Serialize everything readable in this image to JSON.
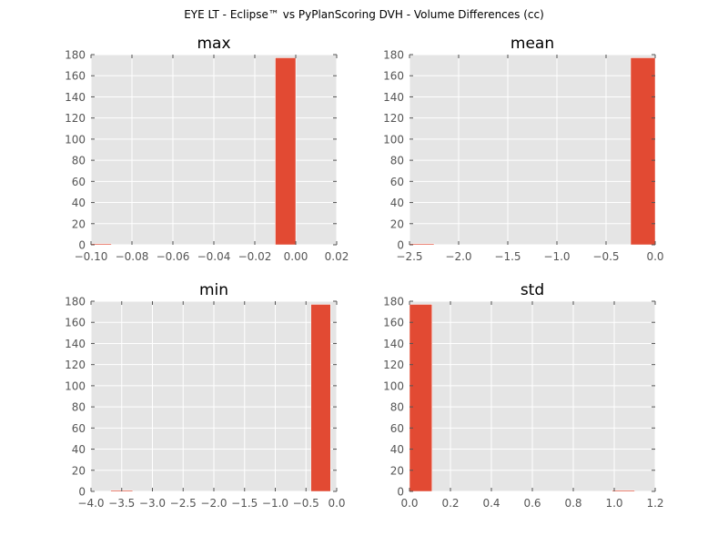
{
  "figure": {
    "suptitle": "EYE LT - Eclipse™ vs PyPlanScoring DVH - Volume Differences (cc)"
  },
  "chart_data": [
    {
      "type": "bar",
      "title": "max",
      "xlabel": "",
      "ylabel": "",
      "xlim": [
        -0.1,
        0.02
      ],
      "ylim": [
        0,
        180
      ],
      "xticks": [
        -0.1,
        -0.08,
        -0.06,
        -0.04,
        -0.02,
        0.0,
        0.02
      ],
      "xtick_labels": [
        "−0.10",
        "−0.08",
        "−0.06",
        "−0.04",
        "−0.02",
        "0.00",
        "0.02"
      ],
      "yticks": [
        0,
        20,
        40,
        60,
        80,
        100,
        120,
        140,
        160,
        180
      ],
      "bins": [
        {
          "x0": -0.1,
          "x1": -0.09,
          "count": 1
        },
        {
          "x0": -0.01,
          "x1": 0.0,
          "count": 177
        }
      ],
      "grid": true,
      "color": "#E24A33"
    },
    {
      "type": "bar",
      "title": "mean",
      "xlabel": "",
      "ylabel": "",
      "xlim": [
        -2.5,
        0.0
      ],
      "ylim": [
        0,
        180
      ],
      "xticks": [
        -2.5,
        -2.0,
        -1.5,
        -1.0,
        -0.5,
        0.0
      ],
      "xtick_labels": [
        "−2.5",
        "−2.0",
        "−1.5",
        "−1.0",
        "−0.5",
        "0.0"
      ],
      "yticks": [
        0,
        20,
        40,
        60,
        80,
        100,
        120,
        140,
        160,
        180
      ],
      "bins": [
        {
          "x0": -2.5,
          "x1": -2.25,
          "count": 1
        },
        {
          "x0": -0.25,
          "x1": 0.0,
          "count": 177
        }
      ],
      "grid": true,
      "color": "#E24A33"
    },
    {
      "type": "bar",
      "title": "min",
      "xlabel": "",
      "ylabel": "",
      "xlim": [
        -4.0,
        0.0
      ],
      "ylim": [
        0,
        180
      ],
      "xticks": [
        -4.0,
        -3.5,
        -3.0,
        -2.5,
        -2.0,
        -1.5,
        -1.0,
        -0.5,
        0.0
      ],
      "xtick_labels": [
        "−4.0",
        "−3.5",
        "−3.0",
        "−2.5",
        "−2.0",
        "−1.5",
        "−1.0",
        "−0.5",
        "0.0"
      ],
      "yticks": [
        0,
        20,
        40,
        60,
        80,
        100,
        120,
        140,
        160,
        180
      ],
      "bins": [
        {
          "x0": -3.68,
          "x1": -3.32,
          "count": 1
        },
        {
          "x0": -0.42,
          "x1": -0.1,
          "count": 177
        }
      ],
      "grid": true,
      "color": "#E24A33"
    },
    {
      "type": "bar",
      "title": "std",
      "xlabel": "",
      "ylabel": "",
      "xlim": [
        0.0,
        1.2
      ],
      "ylim": [
        0,
        180
      ],
      "xticks": [
        0.0,
        0.2,
        0.4,
        0.6,
        0.8,
        1.0,
        1.2
      ],
      "xtick_labels": [
        "0.0",
        "0.2",
        "0.4",
        "0.6",
        "0.8",
        "1.0",
        "1.2"
      ],
      "yticks": [
        0,
        20,
        40,
        60,
        80,
        100,
        120,
        140,
        160,
        180
      ],
      "bins": [
        {
          "x0": 0.0,
          "x1": 0.11,
          "count": 177
        },
        {
          "x0": 0.99,
          "x1": 1.1,
          "count": 1
        }
      ],
      "grid": true,
      "color": "#E24A33"
    }
  ]
}
